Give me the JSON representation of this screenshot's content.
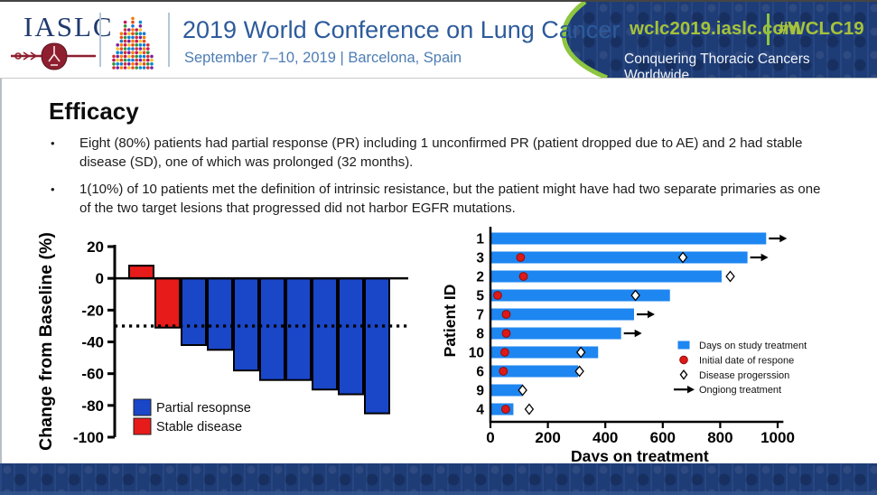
{
  "header": {
    "logo_text": "IASLC",
    "title": "2019 World Conference on Lung Cancer",
    "subtitle": "September 7–10, 2019 | Barcelona, Spain",
    "website": "wclc2019.iaslc.com",
    "hashtag": "#WCLC19",
    "tagline": "Conquering Thoracic Cancers Worldwide"
  },
  "slide": {
    "title": "Efficacy",
    "bullets": [
      "Eight (80%) patients had partial response (PR) including 1 unconfirmed PR (patient dropped due to AE) and 2 had stable disease (SD), one of which was prolonged (32 months).",
      "1(10%) of 10 patients met the definition of intrinsic resistance, but the patient might have had two separate primaries as one of the two target lesions that progressed did not harbor EGFR mutations."
    ]
  },
  "colors": {
    "navy": "#203f7c",
    "lime": "#a5c23a",
    "green_curve": "#8dc63f",
    "title_blue": "#2d5b9b",
    "waterfall_blue": "#1a46c8",
    "stable_red": "#e81b1b",
    "swimmer_blue": "#1e86f0",
    "response_red": "#e01818"
  },
  "chart_data": [
    {
      "type": "bar",
      "name": "waterfall",
      "title": "",
      "ylabel": "Change from Baseline (%)",
      "ylim": [
        -100,
        20
      ],
      "yticks": [
        20,
        0,
        -20,
        -40,
        -60,
        -80,
        -100
      ],
      "reference_line": -30,
      "values": [
        8,
        -31,
        -42,
        -45,
        -58,
        -64,
        -64,
        -70,
        -73,
        -85
      ],
      "bar_types": [
        "stable",
        "stable",
        "partial",
        "partial",
        "partial",
        "partial",
        "partial",
        "partial",
        "partial",
        "partial"
      ],
      "colors": {
        "partial": "#1a46c8",
        "stable": "#e81b1b"
      },
      "legend": [
        {
          "swatch": "partial",
          "label": "Partial resopnse"
        },
        {
          "swatch": "stable",
          "label": "Stable disease"
        }
      ]
    },
    {
      "type": "bar",
      "name": "swimmer",
      "orientation": "horizontal",
      "ylabel": "Patient ID",
      "xlabel": "Days on treatment",
      "xlim": [
        0,
        1000
      ],
      "xticks": [
        0,
        200,
        400,
        600,
        800,
        1000
      ],
      "bar_color": "#1e86f0",
      "patients": [
        {
          "id": "1",
          "days": 960,
          "response": null,
          "progression": null,
          "ongoing": true
        },
        {
          "id": "3",
          "days": 895,
          "response": 105,
          "progression": 670,
          "ongoing": true
        },
        {
          "id": "2",
          "days": 805,
          "response": 115,
          "progression": 835,
          "ongoing": false
        },
        {
          "id": "5",
          "days": 625,
          "response": 25,
          "progression": 505,
          "ongoing": false
        },
        {
          "id": "7",
          "days": 500,
          "response": 55,
          "progression": null,
          "ongoing": true
        },
        {
          "id": "8",
          "days": 455,
          "response": 55,
          "progression": null,
          "ongoing": true
        },
        {
          "id": "10",
          "days": 375,
          "response": 50,
          "progression": 315,
          "ongoing": false
        },
        {
          "id": "6",
          "days": 305,
          "response": 45,
          "progression": 310,
          "ongoing": false
        },
        {
          "id": "9",
          "days": 112,
          "response": null,
          "progression": 112,
          "ongoing": false
        },
        {
          "id": "4",
          "days": 80,
          "response": 53,
          "progression": 135,
          "ongoing": false
        }
      ],
      "legend": [
        {
          "marker": "bar",
          "label": "Days on study treatment"
        },
        {
          "marker": "response",
          "label": "Initial date of respone"
        },
        {
          "marker": "progression",
          "label": "Disease progerssion"
        },
        {
          "marker": "ongoing",
          "label": "Ongiong treatment"
        }
      ]
    }
  ]
}
